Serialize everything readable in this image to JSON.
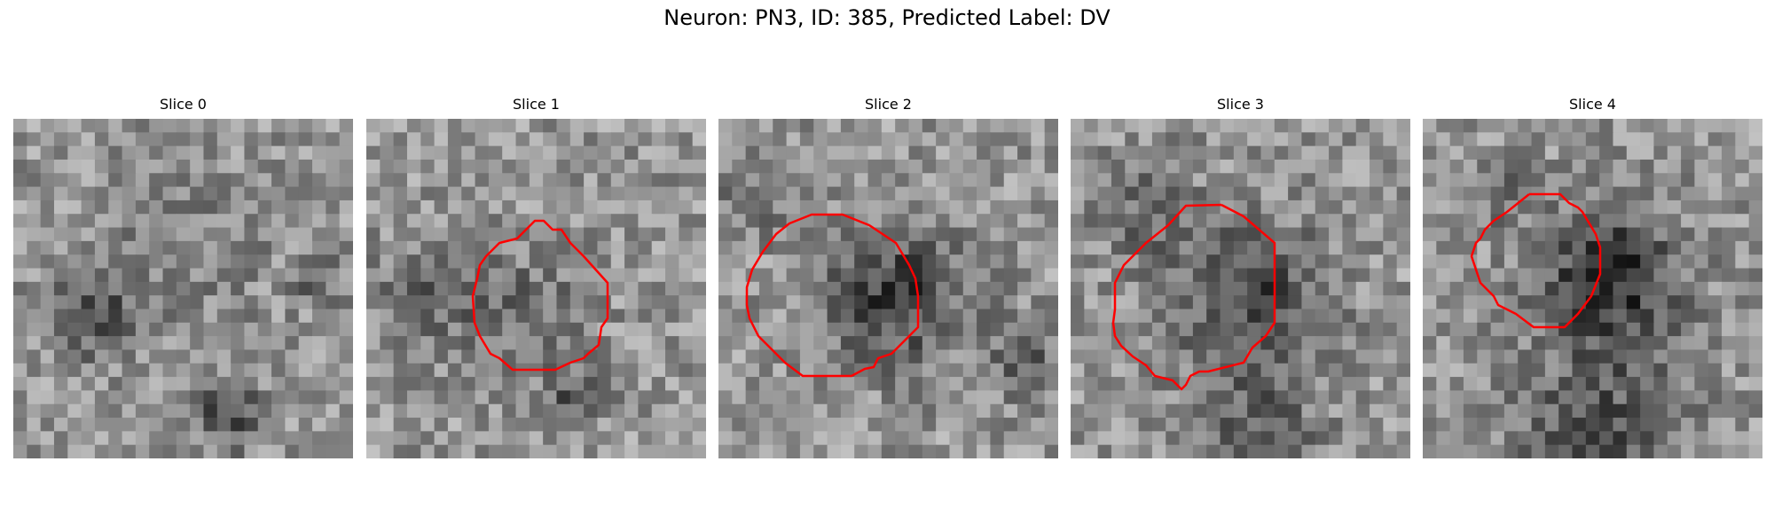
{
  "figure": {
    "title": "Neuron: PN3, ID: 385, Predicted Label: DV"
  },
  "panels": [
    {
      "title": "Slice 0",
      "has_contour": false
    },
    {
      "title": "Slice 1",
      "has_contour": true
    },
    {
      "title": "Slice 2",
      "has_contour": true
    },
    {
      "title": "Slice 3",
      "has_contour": true
    },
    {
      "title": "Slice 4",
      "has_contour": true
    }
  ],
  "colors": {
    "contour": "#ff0000",
    "image_background": "#9a9a9a"
  }
}
